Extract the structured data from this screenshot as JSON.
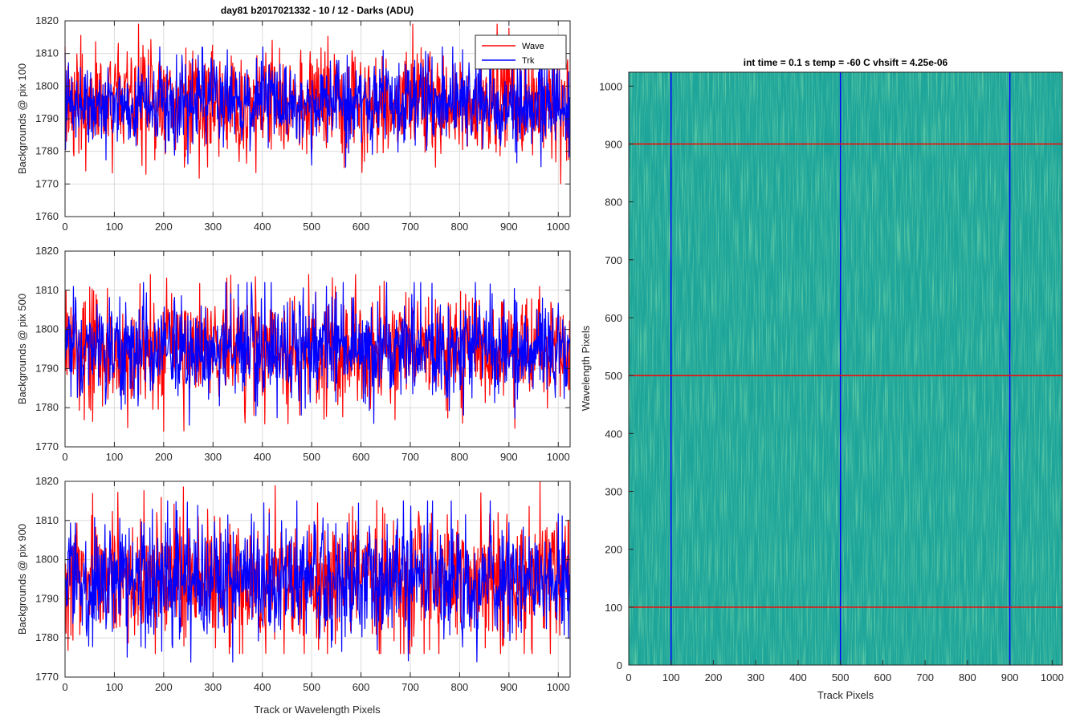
{
  "chart_data": [
    {
      "type": "line",
      "title": "day81 b2017021332 - 10 / 12 - Darks (ADU)",
      "xlabel": "",
      "ylabel": "Backgrounds @ pix 100",
      "xlim": [
        0,
        1024
      ],
      "ylim": [
        1760,
        1820
      ],
      "xticks": [
        "0",
        "100",
        "200",
        "300",
        "400",
        "500",
        "600",
        "700",
        "800",
        "900",
        "1000"
      ],
      "yticks": [
        "1760",
        "1770",
        "1780",
        "1790",
        "1800",
        "1810",
        "1820"
      ],
      "grid": true,
      "legend": "top-right",
      "series": [
        {
          "name": "Wave",
          "color": "#ff0000",
          "n_points": 1024,
          "mean": 1795,
          "range": [
            1769,
            1819
          ]
        },
        {
          "name": "Trk",
          "color": "#0000ff",
          "n_points": 1024,
          "mean": 1795,
          "range": [
            1775,
            1812
          ]
        }
      ]
    },
    {
      "type": "line",
      "title": "",
      "xlabel": "",
      "ylabel": "Backgrounds @ pix 500",
      "xlim": [
        0,
        1024
      ],
      "ylim": [
        1770,
        1820
      ],
      "xticks": [
        "0",
        "100",
        "200",
        "300",
        "400",
        "500",
        "600",
        "700",
        "800",
        "900",
        "1000"
      ],
      "yticks": [
        "1770",
        "1780",
        "1790",
        "1800",
        "1810",
        "1820"
      ],
      "grid": true,
      "series": [
        {
          "name": "Wave",
          "color": "#ff0000",
          "n_points": 1024,
          "mean": 1795,
          "range": [
            1774,
            1814
          ]
        },
        {
          "name": "Trk",
          "color": "#0000ff",
          "n_points": 1024,
          "mean": 1795,
          "range": [
            1775,
            1812
          ]
        }
      ]
    },
    {
      "type": "line",
      "title": "",
      "xlabel": "Track or Wavelength Pixels",
      "ylabel": "Backgrounds @ pix 900",
      "xlim": [
        0,
        1024
      ],
      "ylim": [
        1770,
        1820
      ],
      "xticks": [
        "0",
        "100",
        "200",
        "300",
        "400",
        "500",
        "600",
        "700",
        "800",
        "900",
        "1000"
      ],
      "yticks": [
        "1770",
        "1780",
        "1790",
        "1800",
        "1810",
        "1820"
      ],
      "grid": true,
      "series": [
        {
          "name": "Wave",
          "color": "#ff0000",
          "n_points": 1024,
          "mean": 1795,
          "range": [
            1776,
            1820
          ]
        },
        {
          "name": "Trk",
          "color": "#0000ff",
          "n_points": 1024,
          "mean": 1795,
          "range": [
            1772,
            1815
          ]
        }
      ]
    },
    {
      "type": "heatmap",
      "title": "int time = 0.1 s   temp = -60 C   vhsift = 4.25e-06",
      "xlabel": "Track Pixels",
      "ylabel": "Wavelength Pixels",
      "xlim": [
        0,
        1024
      ],
      "ylim": [
        0,
        1024
      ],
      "xticks": [
        "0",
        "100",
        "200",
        "300",
        "400",
        "500",
        "600",
        "700",
        "800",
        "900",
        "1000"
      ],
      "yticks": [
        "0",
        "100",
        "200",
        "300",
        "400",
        "500",
        "600",
        "700",
        "800",
        "900",
        "1000"
      ],
      "colormap": [
        "#1aa39a",
        "#2db09b",
        "#7fc57b"
      ],
      "vertical_markers": {
        "color": "#0000ff",
        "x": [
          100,
          500,
          900
        ]
      },
      "horizontal_markers": {
        "color": "#ff0000",
        "y": [
          100,
          500,
          900
        ]
      }
    }
  ]
}
